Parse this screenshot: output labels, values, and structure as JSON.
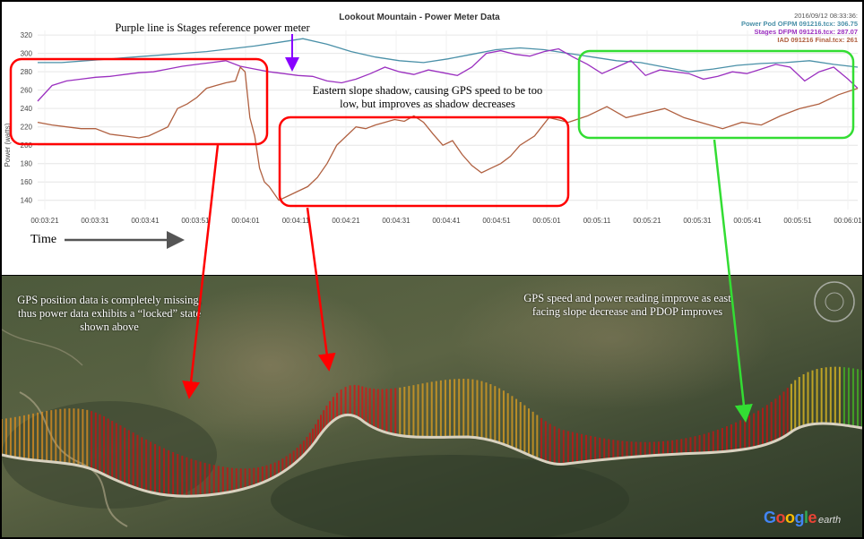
{
  "chart_data": {
    "type": "line",
    "title": "Lookout Mountain - Power Meter Data",
    "ylabel": "Power (watts)",
    "xlabel": "",
    "ylim": [
      130,
      325
    ],
    "yticks": [
      140,
      160,
      180,
      200,
      220,
      240,
      260,
      280,
      300,
      320
    ],
    "xticks": [
      "00:03:21",
      "00:03:31",
      "00:03:41",
      "00:03:51",
      "00:04:01",
      "00:04:11",
      "00:04:21",
      "00:04:31",
      "00:04:41",
      "00:04:51",
      "00:05:01",
      "00:05:11",
      "00:05:21",
      "00:05:31",
      "00:05:41",
      "00:05:51",
      "00:06:01"
    ],
    "legend_placement": "top-right",
    "legend_header": "2016/09/12 08:33:36:",
    "series": [
      {
        "name": "Power Pod OFPM 091216.tcx",
        "value": "306.75",
        "color": "#4a90a8",
        "x": [
          0,
          5,
          10,
          15,
          20,
          25,
          30,
          35,
          40,
          45,
          50,
          55,
          60,
          65,
          70,
          75,
          80,
          85,
          90,
          95,
          100,
          105,
          110,
          115,
          120,
          125,
          130,
          135,
          140,
          145,
          150,
          155,
          160,
          165,
          170
        ],
        "y": [
          290,
          290,
          292,
          294,
          296,
          298,
          300,
          302,
          305,
          308,
          312,
          316,
          310,
          302,
          296,
          292,
          290,
          294,
          299,
          304,
          306,
          304,
          300,
          296,
          292,
          290,
          285,
          280,
          283,
          287,
          289,
          290,
          292,
          288,
          285
        ]
      },
      {
        "name": "Stages DFPM 091216.tcx",
        "value": "287.07",
        "color": "#9b30c0",
        "x": [
          0,
          3,
          6,
          9,
          12,
          15,
          18,
          21,
          24,
          27,
          30,
          33,
          36,
          39,
          42,
          45,
          48,
          51,
          54,
          57,
          60,
          63,
          66,
          69,
          72,
          75,
          78,
          81,
          84,
          87,
          90,
          93,
          96,
          99,
          102,
          105,
          108,
          111,
          114,
          117,
          120,
          123,
          126,
          129,
          132,
          135,
          138,
          141,
          144,
          147,
          150,
          153,
          156,
          159,
          162,
          165,
          168,
          170
        ],
        "y": [
          248,
          265,
          270,
          272,
          274,
          275,
          277,
          279,
          280,
          283,
          286,
          288,
          290,
          292,
          286,
          283,
          280,
          278,
          276,
          275,
          270,
          268,
          272,
          278,
          285,
          280,
          277,
          282,
          279,
          276,
          285,
          300,
          303,
          299,
          297,
          302,
          305,
          296,
          288,
          278,
          285,
          292,
          276,
          282,
          280,
          278,
          272,
          275,
          280,
          278,
          283,
          288,
          285,
          270,
          280,
          285,
          272,
          262
        ]
      },
      {
        "name": "IAD 091216 Final.tcx",
        "value": "261",
        "color": "#b06040",
        "x": [
          0,
          3,
          6,
          9,
          12,
          15,
          18,
          21,
          23,
          25,
          27,
          29,
          31,
          33,
          35,
          37,
          39,
          41,
          42,
          43,
          44,
          45,
          46,
          47,
          48,
          50,
          52,
          54,
          56,
          58,
          60,
          62,
          64,
          66,
          68,
          70,
          72,
          74,
          76,
          78,
          80,
          82,
          84,
          86,
          88,
          90,
          92,
          94,
          96,
          98,
          100,
          103,
          106,
          110,
          114,
          118,
          122,
          126,
          130,
          134,
          138,
          142,
          146,
          150,
          154,
          158,
          162,
          166,
          170
        ],
        "y": [
          225,
          222,
          220,
          218,
          218,
          212,
          210,
          208,
          210,
          215,
          220,
          240,
          245,
          252,
          262,
          265,
          268,
          270,
          285,
          280,
          230,
          210,
          175,
          160,
          155,
          140,
          145,
          150,
          155,
          165,
          180,
          200,
          210,
          220,
          218,
          222,
          225,
          228,
          226,
          232,
          225,
          212,
          200,
          205,
          190,
          178,
          170,
          175,
          180,
          188,
          200,
          210,
          230,
          225,
          232,
          242,
          230,
          235,
          240,
          230,
          224,
          218,
          225,
          222,
          232,
          240,
          245,
          255,
          262
        ]
      }
    ]
  },
  "annotations": {
    "purple_line": "Purple line is Stages reference power meter",
    "eastern_slope": "Eastern slope shadow, causing GPS speed to be too low, but improves as shadow decreases",
    "gps_missing": "GPS position data is completely missing, thus power data exhibits a “locked” state shown above",
    "gps_improve": "GPS speed and power reading improve as east facing slope decrease and PDOP improves",
    "time_label": "Time"
  },
  "logo": {
    "google": "Google",
    "earth": "earth"
  },
  "colors": {
    "box_red": "#ff0000",
    "box_green": "#33dd33",
    "arrow_purple": "#8800ff"
  }
}
